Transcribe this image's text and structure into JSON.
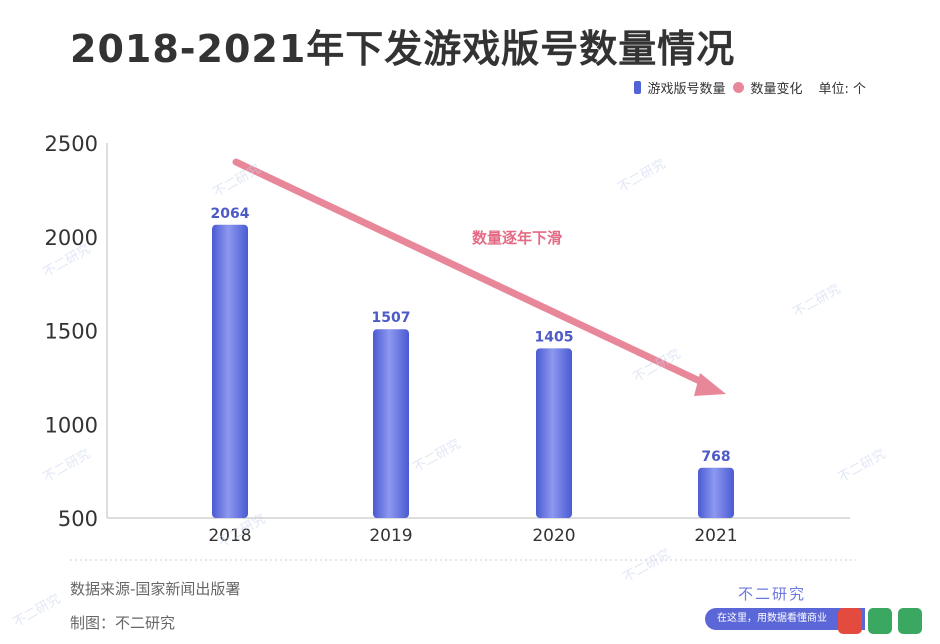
{
  "title": "2018-2021年下发游戏版号数量情况",
  "legend": {
    "bar_label": "游戏版号数量",
    "trend_label": "数量变化",
    "unit": "单位: 个"
  },
  "annotation": "数量逐年下滑",
  "source": "数据来源-国家新闻出版署",
  "maker": "制图：不二研究",
  "brand": "不二研究",
  "slogan": "在这里，用数据看懂商业",
  "watermark_text": "不二研究",
  "colors": {
    "bar": "#5263d8",
    "bar_highlight": "#8d98ef",
    "trend": "#e9879a",
    "label": "#4d5bc6",
    "annotation": "#e46b85"
  },
  "chart_data": {
    "type": "bar",
    "categories": [
      "2018",
      "2019",
      "2020",
      "2021"
    ],
    "values": [
      2064,
      1507,
      1405,
      768
    ],
    "yticks": [
      500,
      1000,
      1500,
      2000,
      2500
    ],
    "ylim": [
      500,
      2500
    ],
    "grid": false,
    "legend_position": "top-right"
  }
}
